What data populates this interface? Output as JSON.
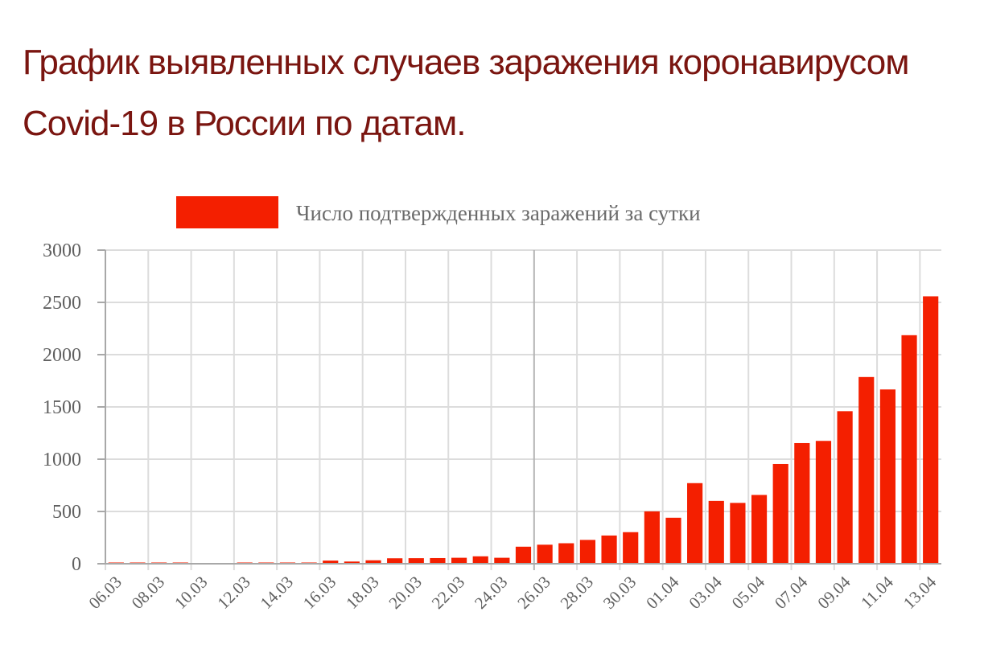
{
  "title_lines": [
    "График выявленных случаев заражения коронавирусом",
    "Covid-19 в России по датам."
  ],
  "chart_data": {
    "type": "bar",
    "title": "График выявленных случаев заражения коронавирусом Covid-19 в России по датам.",
    "xlabel": "",
    "ylabel": "",
    "ylim": [
      0,
      3000
    ],
    "yticks": [
      0,
      500,
      1000,
      1500,
      2000,
      2500,
      3000
    ],
    "grid": true,
    "legend_position": "top-center",
    "categories": [
      "06.03",
      "07.03",
      "08.03",
      "09.03",
      "10.03",
      "11.03",
      "12.03",
      "13.03",
      "14.03",
      "15.03",
      "16.03",
      "17.03",
      "18.03",
      "19.03",
      "20.03",
      "21.03",
      "22.03",
      "23.03",
      "24.03",
      "25.03",
      "26.03",
      "27.03",
      "28.03",
      "29.03",
      "30.03",
      "31.03",
      "01.04",
      "02.04",
      "03.04",
      "04.04",
      "05.04",
      "06.04",
      "07.04",
      "08.04",
      "09.04",
      "10.04",
      "11.04",
      "12.04",
      "13.04"
    ],
    "tick_labels": [
      "06.03",
      "08.03",
      "10.03",
      "12.03",
      "14.03",
      "16.03",
      "18.03",
      "20.03",
      "22.03",
      "24.03",
      "26.03",
      "28.03",
      "30.03",
      "01.04",
      "03.04",
      "05.04",
      "07.04",
      "09.04",
      "11.04",
      "13.04"
    ],
    "series": [
      {
        "name": "Число подтвержденных заражений за сутки",
        "color": "#f41f00",
        "values": [
          6,
          4,
          3,
          3,
          0,
          0,
          6,
          6,
          6,
          3,
          30,
          21,
          33,
          52,
          53,
          54,
          57,
          71,
          57,
          163,
          182,
          196,
          228,
          270,
          302,
          501,
          440,
          771,
          601,
          582,
          658,
          954,
          1154,
          1175,
          1459,
          1786,
          1667,
          2186,
          2558
        ]
      }
    ]
  }
}
